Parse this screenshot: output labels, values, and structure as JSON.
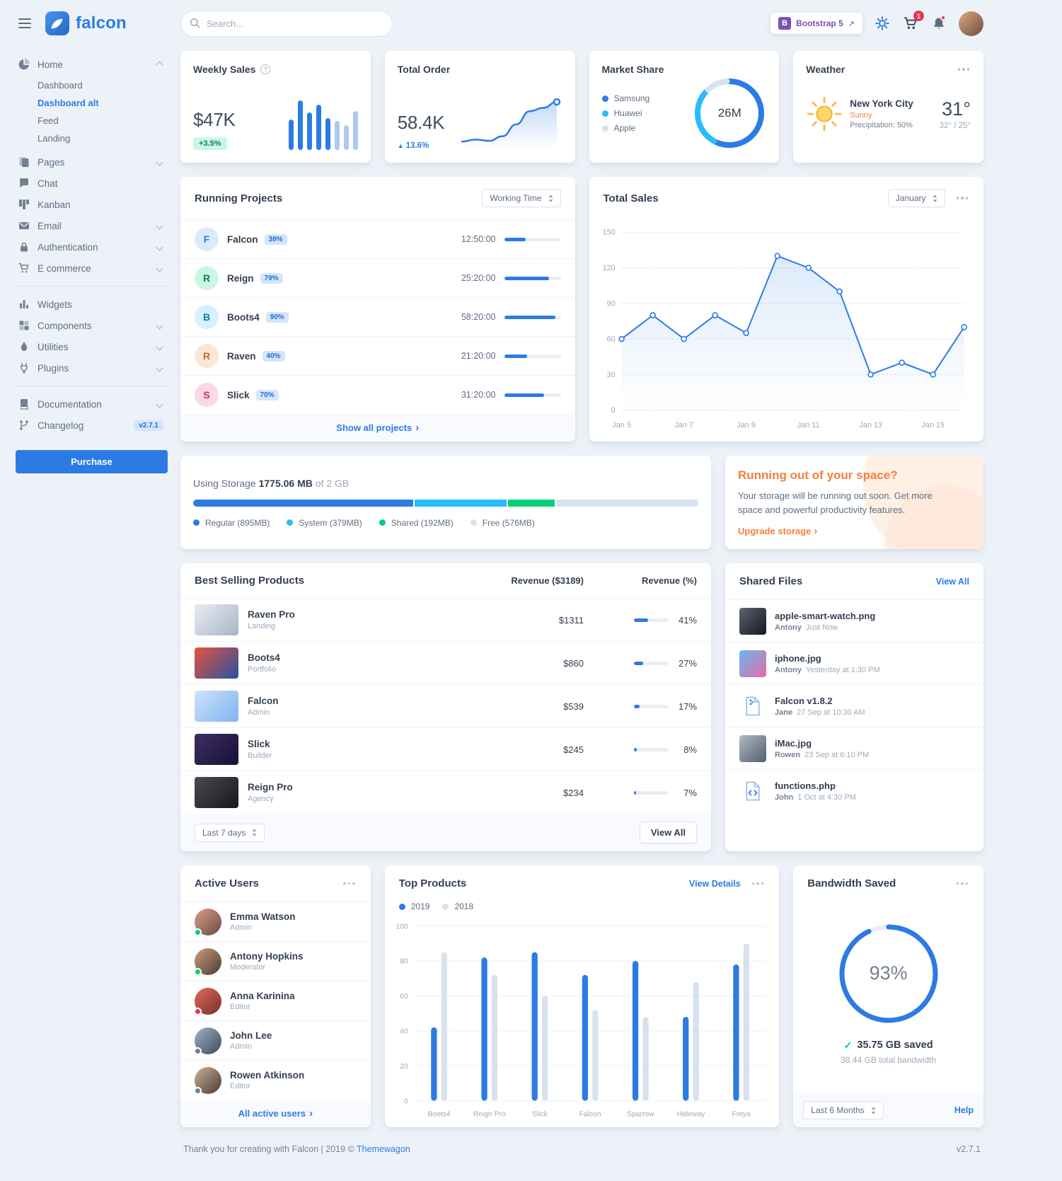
{
  "brand": {
    "name": "falcon"
  },
  "header": {
    "search_placeholder": "Search...",
    "bootstrap_label": "Bootstrap 5",
    "cart_count": "1"
  },
  "sidebar": {
    "home": {
      "label": "Home",
      "children": [
        {
          "label": "Dashboard"
        },
        {
          "label": "Dashboard alt",
          "cls": "active"
        },
        {
          "label": "Feed"
        },
        {
          "label": "Landing"
        }
      ]
    },
    "sections": [
      {
        "items": [
          {
            "label": "Pages",
            "icon": "pages-icon",
            "chevron": true
          },
          {
            "label": "Chat",
            "icon": "chat-icon"
          },
          {
            "label": "Kanban",
            "icon": "kanban-icon"
          },
          {
            "label": "Email",
            "icon": "email-icon",
            "chevron": true
          },
          {
            "label": "Authentication",
            "icon": "lock-icon",
            "chevron": true
          },
          {
            "label": "E commerce",
            "icon": "cart-icon",
            "chevron": true
          }
        ]
      },
      {
        "items": [
          {
            "label": "Widgets",
            "icon": "poll-icon"
          },
          {
            "label": "Components",
            "icon": "puzzle-icon",
            "chevron": true
          },
          {
            "label": "Utilities",
            "icon": "utilities-icon",
            "chevron": true
          },
          {
            "label": "Plugins",
            "icon": "plug-icon",
            "chevron": true
          }
        ]
      },
      {
        "items": [
          {
            "label": "Documentation",
            "icon": "book-icon",
            "chevron": true
          },
          {
            "label": "Changelog",
            "icon": "code-branch-icon",
            "badge": "v2.7.1"
          }
        ]
      }
    ],
    "purchase_label": "Purchase"
  },
  "weekly_sales": {
    "title": "Weekly Sales",
    "value": "$47K",
    "change": "+3.5%"
  },
  "total_order": {
    "title": "Total Order",
    "value": "58.4K",
    "change": "13.6%"
  },
  "market_share": {
    "title": "Market Share"
  },
  "weather": {
    "title": "Weather",
    "city": "New York City",
    "condition": "Sunny",
    "precipitation": "Precipitation: 50%",
    "temp": "31°",
    "range": "32° / 25°"
  },
  "running_projects": {
    "title": "Running Projects",
    "filter": "Working Time",
    "rows": [
      {
        "initial": "F",
        "name": "Falcon",
        "percent": "38%",
        "time": "12:50:00",
        "progress": 38,
        "avatar_bg": "#dcebfb",
        "avatar_color": "#2c7be5"
      },
      {
        "initial": "R",
        "name": "Reign",
        "percent": "79%",
        "time": "25:20:00",
        "progress": 79,
        "avatar_bg": "#ccf6e4",
        "avatar_color": "#00864e"
      },
      {
        "initial": "B",
        "name": "Boots4",
        "percent": "90%",
        "time": "58:20:00",
        "progress": 90,
        "avatar_bg": "#d4f2ff",
        "avatar_color": "#1978a2"
      },
      {
        "initial": "R",
        "name": "Raven",
        "percent": "40%",
        "time": "21:20:00",
        "progress": 40,
        "avatar_bg": "#fde6d8",
        "avatar_color": "#c46632"
      },
      {
        "initial": "S",
        "name": "Slick",
        "percent": "70%",
        "time": "31:20:00",
        "progress": 70,
        "avatar_bg": "#f9d9e2",
        "avatar_color": "#ca2d5c"
      }
    ],
    "footer_link": "Show all projects"
  },
  "total_sales": {
    "title": "Total Sales",
    "filter": "January"
  },
  "storage": {
    "label_prefix": "Using Storage",
    "used": "1775.06 MB",
    "total": "of 2 GB",
    "segments": [
      {
        "label": "Regular (895MB)",
        "mb": 895,
        "color": "#2c7be5"
      },
      {
        "label": "System (379MB)",
        "mb": 379,
        "color": "#27bcfd"
      },
      {
        "label": "Shared (192MB)",
        "mb": 192,
        "color": "#00d27a"
      },
      {
        "label": "Free (576MB)",
        "mb": 576,
        "color": "#d8e2ef"
      }
    ]
  },
  "space_card": {
    "title": "Running out of your space?",
    "body": "Your storage will be running out soon. Get more space and powerful productivity features.",
    "link": "Upgrade storage"
  },
  "best_selling": {
    "title": "Best Selling Products",
    "col_revenue": "Revenue ($3189)",
    "col_percent": "Revenue (%)",
    "rows": [
      {
        "name": "Raven Pro",
        "category": "Landing",
        "revenue": "$1311",
        "percent": "41%",
        "progress": 41,
        "thumb": "linear-gradient(135deg,#e8edf3,#a7b4c6)"
      },
      {
        "name": "Boots4",
        "category": "Portfolio",
        "revenue": "$860",
        "percent": "27%",
        "progress": 27,
        "thumb": "linear-gradient(135deg,#e6533c,#2851a3)"
      },
      {
        "name": "Falcon",
        "category": "Admin",
        "revenue": "$539",
        "percent": "17%",
        "progress": 17,
        "thumb": "linear-gradient(135deg,#cfe3fb,#7fb3f0)"
      },
      {
        "name": "Slick",
        "category": "Builder",
        "revenue": "$245",
        "percent": "8%",
        "progress": 8,
        "thumb": "linear-gradient(135deg,#3b2f63,#191036)"
      },
      {
        "name": "Reign Pro",
        "category": "Agency",
        "revenue": "$234",
        "percent": "7%",
        "progress": 7,
        "thumb": "linear-gradient(135deg,#4a4a52,#17171c)"
      }
    ],
    "filter": "Last 7 days",
    "view_all": "View All"
  },
  "shared_files": {
    "title": "Shared Files",
    "view_all": "View All",
    "files": [
      {
        "name": "apple-smart-watch.png",
        "user": "Antony",
        "time": "Just Now",
        "thumb": "linear-gradient(135deg,#5b6470,#16181d)"
      },
      {
        "name": "iphone.jpg",
        "user": "Antony",
        "time": "Yesterday at 1:30 PM",
        "thumb": "linear-gradient(135deg,#67b8f2,#e86aa6)"
      },
      {
        "name": "Falcon v1.8.2",
        "user": "Jane",
        "time": "27 Sep at 10:30 AM",
        "icon": "file-archive-icon"
      },
      {
        "name": "iMac.jpg",
        "user": "Rowen",
        "time": "23 Sep at 6:10 PM",
        "thumb": "linear-gradient(135deg,#aeb9c4,#52616e)"
      },
      {
        "name": "functions.php",
        "user": "John",
        "time": "1 Oct at 4:30 PM",
        "icon": "file-code-icon"
      }
    ]
  },
  "active_users": {
    "title": "Active Users",
    "users": [
      {
        "name": "Emma Watson",
        "role": "Admin",
        "status": "#00d27a",
        "avatar": "linear-gradient(135deg,#d9a08c,#6b4a3f)"
      },
      {
        "name": "Antony Hopkins",
        "role": "Moderator",
        "status": "#00d27a",
        "avatar": "linear-gradient(135deg,#cf9d7c,#4a3a35)"
      },
      {
        "name": "Anna Karinina",
        "role": "Editor",
        "status": "#e63757",
        "avatar": "linear-gradient(135deg,#e06c5a,#7a2e2e)"
      },
      {
        "name": "John Lee",
        "role": "Admin",
        "status": "#748194",
        "avatar": "linear-gradient(135deg,#9fb3c8,#3a4a5a)"
      },
      {
        "name": "Rowen Atkinson",
        "role": "Editor",
        "status": "#748194",
        "avatar": "linear-gradient(135deg,#c9b29a,#4a3b30)"
      }
    ],
    "footer_link": "All active users"
  },
  "top_products": {
    "title": "Top Products",
    "view_details": "View Details"
  },
  "bandwidth": {
    "title": "Bandwidth Saved",
    "saved": "35.75 GB saved",
    "total": "38.44 GB total bandwidth",
    "filter": "Last 6 Months",
    "help": "Help"
  },
  "footer": {
    "left": "Thank you for creating with Falcon | 2019 ©",
    "brand_link": "Themewagon",
    "version": "v2.7.1"
  },
  "chart_data": [
    {
      "id": "weekly_sales_bars",
      "type": "bar",
      "values": [
        55,
        90,
        68,
        82,
        58,
        52,
        45,
        70
      ],
      "color": "#2c7be5",
      "light_color": "#aec8ec",
      "light_from": 5,
      "title": "Weekly Sales mini bars"
    },
    {
      "id": "total_order_line",
      "type": "area",
      "values": [
        22,
        25,
        23,
        30,
        48,
        68,
        73,
        82
      ],
      "color": "#2c7be5",
      "title": "Total Order trend"
    },
    {
      "id": "market_share_donut",
      "type": "pie",
      "center_label": "26M",
      "slices": [
        {
          "label": "Samsung",
          "value": 58,
          "color": "#2c7be5"
        },
        {
          "label": "Huawei",
          "value": 30,
          "color": "#27bcfd"
        },
        {
          "label": "Apple",
          "value": 12,
          "color": "#d8e2ef"
        }
      ]
    },
    {
      "id": "total_sales_line",
      "type": "line",
      "title": "Total Sales",
      "x_labels": [
        "Jan 5",
        "Jan 7",
        "Jan 9",
        "Jan 11",
        "Jan 13",
        "Jan 15"
      ],
      "values": [
        60,
        80,
        60,
        80,
        65,
        130,
        120,
        100,
        30,
        40,
        30,
        70
      ],
      "ylim": [
        0,
        150
      ],
      "yticks": [
        0,
        30,
        60,
        90,
        120,
        150
      ],
      "color": "#2c7be5"
    },
    {
      "id": "top_products_bars",
      "type": "bar",
      "title": "Top Products",
      "categories": [
        "Boots4",
        "Reign Pro",
        "Slick",
        "Falcon",
        "Sparrow",
        "Hideway",
        "Freya"
      ],
      "series": [
        {
          "name": "2019",
          "color": "#2c7be5",
          "values": [
            42,
            82,
            85,
            72,
            80,
            48,
            78
          ]
        },
        {
          "name": "2018",
          "color": "#d8e2ef",
          "values": [
            85,
            72,
            60,
            52,
            48,
            68,
            90
          ]
        }
      ],
      "ylim": [
        0,
        100
      ],
      "yticks": [
        0,
        20,
        40,
        60,
        80,
        100
      ]
    },
    {
      "id": "bandwidth_ring",
      "type": "ring",
      "percent": 93,
      "color": "#2c7be5"
    }
  ]
}
